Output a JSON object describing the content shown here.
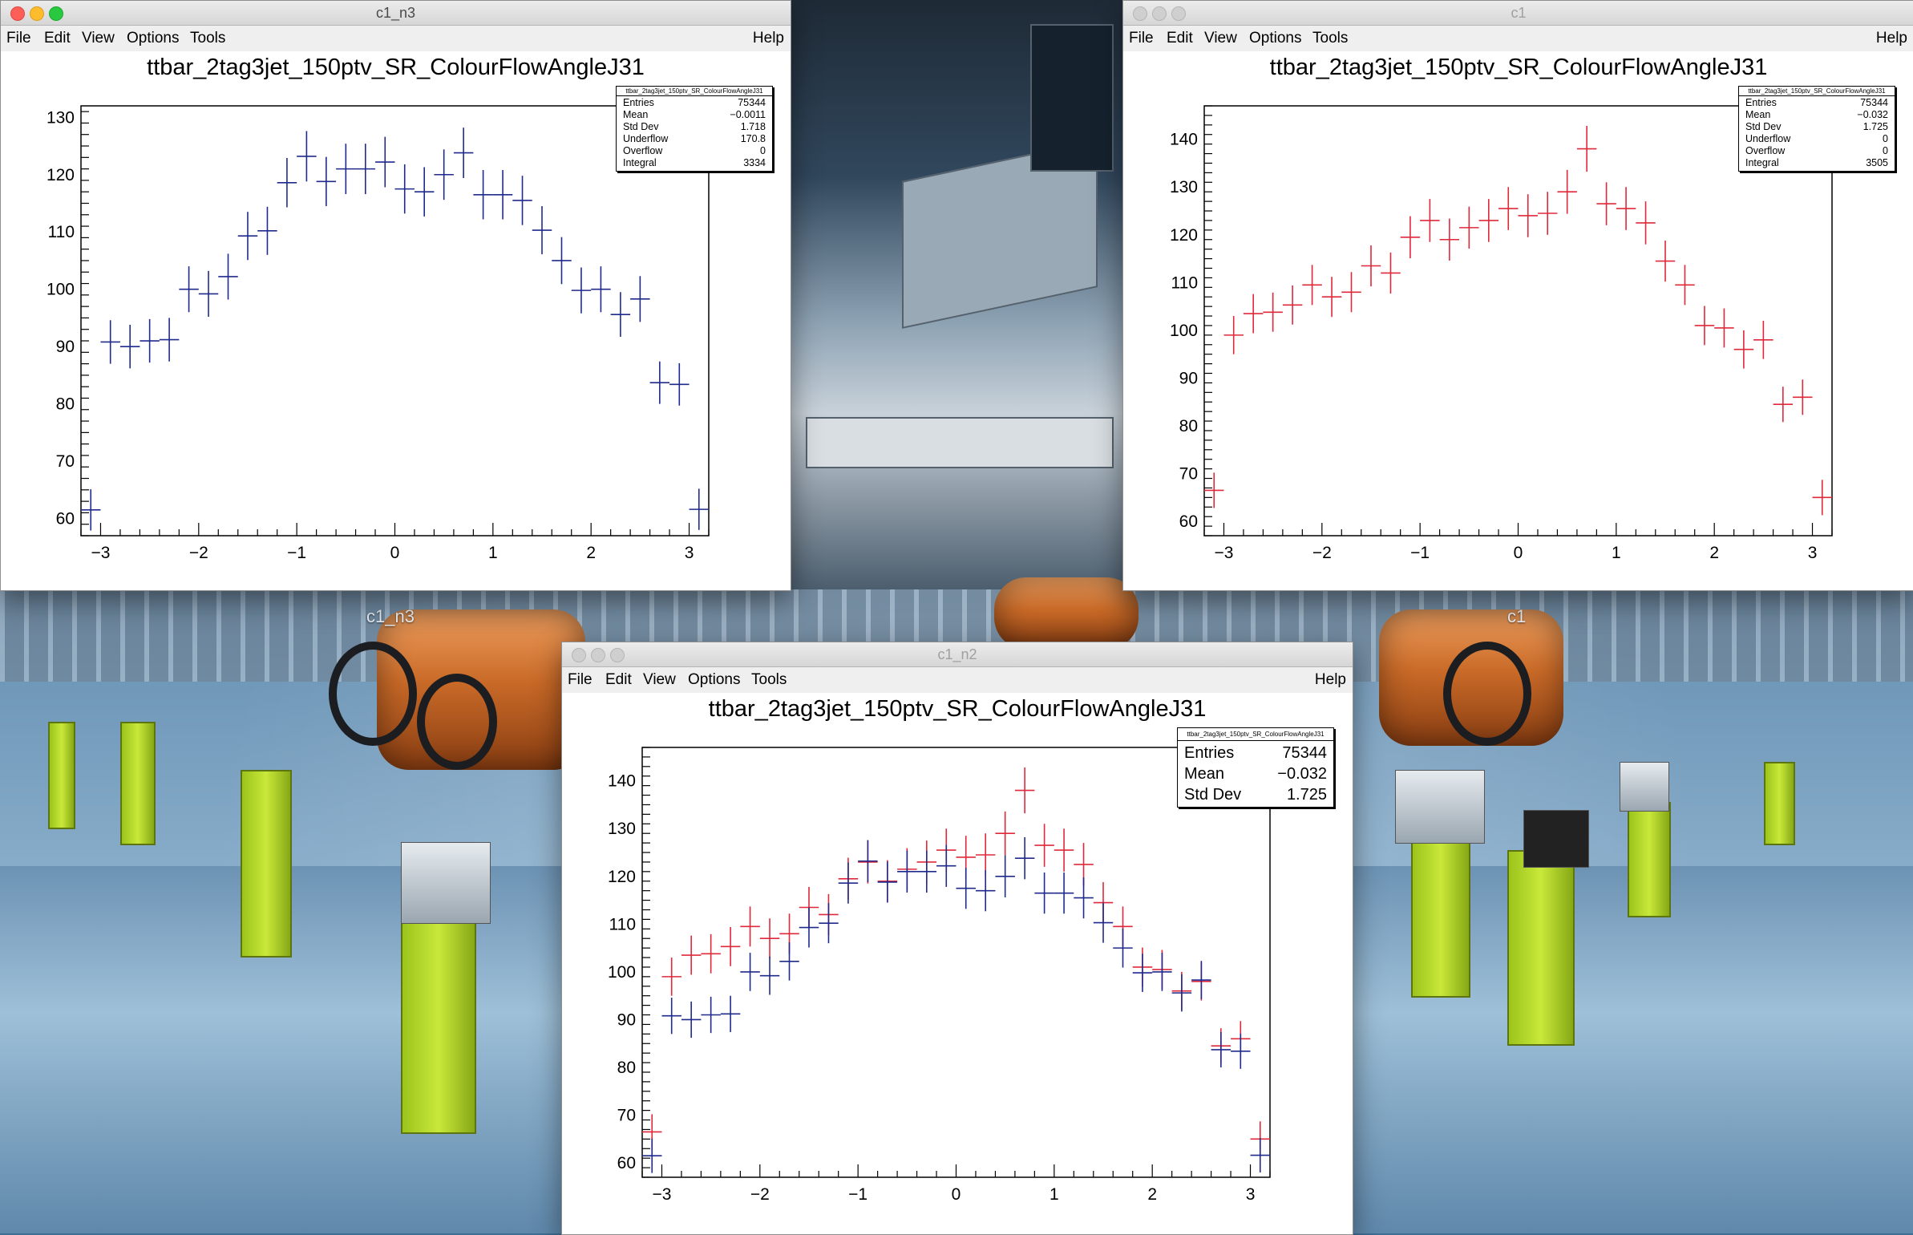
{
  "desktop": {
    "labels": [
      "c1_n3",
      "c1"
    ]
  },
  "menu": [
    "File",
    "Edit",
    "View",
    "Options",
    "Tools"
  ],
  "help": "Help",
  "x_ticks": [
    "−3",
    "−2",
    "−1",
    "0",
    "1",
    "2",
    "3"
  ],
  "windows": [
    {
      "id": "c1_n3",
      "title": "c1_n3",
      "state": "active",
      "hist_title": "ttbar_2tag3jet_150ptv_SR_ColourFlowAngleJ31",
      "stats": {
        "name": "ttbar_2tag3jet_150ptv_SR_ColourFlowAngleJ31",
        "rows": [
          {
            "label": "Entries",
            "value": "75344"
          },
          {
            "label": "Mean",
            "value": "−0.0011"
          },
          {
            "label": "Std Dev",
            "value": "1.718"
          },
          {
            "label": "Underflow",
            "value": "170.8"
          },
          {
            "label": "Overflow",
            "value": "0"
          },
          {
            "label": "Integral",
            "value": "3334"
          }
        ]
      },
      "y_ticks": [
        "60",
        "70",
        "80",
        "90",
        "100",
        "110",
        "120",
        "130"
      ]
    },
    {
      "id": "c1",
      "title": "c1",
      "state": "inactive",
      "hist_title": "ttbar_2tag3jet_150ptv_SR_ColourFlowAngleJ31",
      "stats": {
        "name": "ttbar_2tag3jet_150ptv_SR_ColourFlowAngleJ31",
        "rows": [
          {
            "label": "Entries",
            "value": "75344"
          },
          {
            "label": "Mean",
            "value": "−0.032"
          },
          {
            "label": "Std Dev",
            "value": "1.725"
          },
          {
            "label": "Underflow",
            "value": "0"
          },
          {
            "label": "Overflow",
            "value": "0"
          },
          {
            "label": "Integral",
            "value": "3505"
          }
        ]
      },
      "y_ticks": [
        "60",
        "70",
        "80",
        "90",
        "100",
        "110",
        "120",
        "130",
        "140"
      ]
    },
    {
      "id": "c1_n2",
      "title": "c1_n2",
      "state": "inactive",
      "hist_title": "ttbar_2tag3jet_150ptv_SR_ColourFlowAngleJ31",
      "stats": {
        "name": "ttbar_2tag3jet_150ptv_SR_ColourFlowAngleJ31",
        "rows": [
          {
            "label": "Entries",
            "value": "75344"
          },
          {
            "label": "Mean",
            "value": "−0.032"
          },
          {
            "label": "Std Dev",
            "value": "1.725"
          }
        ]
      },
      "y_ticks": [
        "60",
        "70",
        "80",
        "90",
        "100",
        "110",
        "120",
        "130",
        "140"
      ]
    }
  ],
  "chart_data": [
    {
      "type": "scatter",
      "title": "ttbar_2tag3jet_150ptv_SR_ColourFlowAngleJ31",
      "xlim": [
        -3.2,
        3.2
      ],
      "ylim": [
        57,
        132
      ],
      "bin_width": 0.2,
      "x": [
        -3.1,
        -2.9,
        -2.7,
        -2.5,
        -2.3,
        -2.1,
        -1.9,
        -1.7,
        -1.5,
        -1.3,
        -1.1,
        -0.9,
        -0.7,
        -0.5,
        -0.3,
        -0.1,
        0.1,
        0.3,
        0.5,
        0.7,
        0.9,
        1.1,
        1.3,
        1.5,
        1.7,
        1.9,
        2.1,
        2.3,
        2.5,
        2.7,
        2.9,
        3.1
      ],
      "series": [
        {
          "color": "#1f2a8c",
          "values": [
            61.5,
            90.8,
            90,
            91,
            91.2,
            100,
            99.2,
            102.2,
            109.3,
            110.2,
            118.6,
            123.2,
            118.8,
            121,
            121,
            122.2,
            117.5,
            117,
            120,
            123.8,
            116.5,
            116.5,
            115.5,
            110.3,
            105,
            99.8,
            100,
            95.6,
            98.3,
            83.7,
            83.4,
            61.6
          ],
          "errors": [
            3.6,
            3.8,
            3.8,
            3.8,
            3.8,
            4,
            4,
            4,
            4.2,
            4.2,
            4.3,
            4.4,
            4.3,
            4.4,
            4.4,
            4.4,
            4.3,
            4.3,
            4.4,
            4.4,
            4.3,
            4.3,
            4.3,
            4.2,
            4.1,
            4,
            4,
            3.9,
            4,
            3.7,
            3.7,
            3.6
          ]
        }
      ]
    },
    {
      "type": "scatter",
      "title": "ttbar_2tag3jet_150ptv_SR_ColourFlowAngleJ31",
      "xlim": [
        -3.2,
        3.2
      ],
      "ylim": [
        57,
        147
      ],
      "bin_width": 0.2,
      "x": [
        -3.1,
        -2.9,
        -2.7,
        -2.5,
        -2.3,
        -2.1,
        -1.9,
        -1.7,
        -1.5,
        -1.3,
        -1.1,
        -0.9,
        -0.7,
        -0.5,
        -0.3,
        -0.1,
        0.1,
        0.3,
        0.5,
        0.7,
        0.9,
        1.1,
        1.3,
        1.5,
        1.7,
        1.9,
        2.1,
        2.3,
        2.5,
        2.7,
        2.9,
        3.1
      ],
      "series": [
        {
          "color": "#e0283a",
          "values": [
            66.5,
            99,
            103.5,
            103.8,
            105.3,
            109.5,
            107,
            108,
            113.5,
            112,
            119.5,
            123,
            119,
            121.5,
            123,
            125.5,
            124,
            124.5,
            129,
            138,
            126.5,
            125.5,
            122.5,
            114.5,
            109.5,
            101,
            100.5,
            96,
            98,
            84.5,
            86,
            65
          ],
          "errors": [
            3.7,
            4,
            4.1,
            4.1,
            4.1,
            4.2,
            4.2,
            4.2,
            4.3,
            4.3,
            4.4,
            4.5,
            4.4,
            4.4,
            4.5,
            4.5,
            4.5,
            4.5,
            4.6,
            4.8,
            4.5,
            4.5,
            4.5,
            4.3,
            4.2,
            4.1,
            4.1,
            4,
            4,
            3.7,
            3.7,
            3.7
          ]
        }
      ]
    },
    {
      "type": "scatter",
      "title": "ttbar_2tag3jet_150ptv_SR_ColourFlowAngleJ31",
      "xlim": [
        -3.2,
        3.2
      ],
      "ylim": [
        57,
        147
      ],
      "bin_width": 0.2,
      "x": [
        -3.1,
        -2.9,
        -2.7,
        -2.5,
        -2.3,
        -2.1,
        -1.9,
        -1.7,
        -1.5,
        -1.3,
        -1.1,
        -0.9,
        -0.7,
        -0.5,
        -0.3,
        -0.1,
        0.1,
        0.3,
        0.5,
        0.7,
        0.9,
        1.1,
        1.3,
        1.5,
        1.7,
        1.9,
        2.1,
        2.3,
        2.5,
        2.7,
        2.9,
        3.1
      ],
      "series": [
        {
          "color": "#e0283a",
          "values": [
            66.5,
            99,
            103.5,
            103.8,
            105.3,
            109.5,
            107,
            108,
            113.5,
            112,
            119.5,
            123,
            119,
            121.5,
            123,
            125.5,
            124,
            124.5,
            129,
            138,
            126.5,
            125.5,
            122.5,
            114.5,
            109.5,
            101,
            100.5,
            96,
            98,
            84.5,
            86,
            65
          ],
          "errors": [
            3.7,
            4,
            4.1,
            4.1,
            4.1,
            4.2,
            4.2,
            4.2,
            4.3,
            4.3,
            4.4,
            4.5,
            4.4,
            4.4,
            4.5,
            4.5,
            4.5,
            4.5,
            4.6,
            4.8,
            4.5,
            4.5,
            4.5,
            4.3,
            4.2,
            4.1,
            4.1,
            4,
            4,
            3.7,
            3.7,
            3.7
          ]
        },
        {
          "color": "#1f2a8c",
          "values": [
            61.5,
            90.8,
            90,
            91,
            91.2,
            100,
            99.2,
            102.2,
            109.3,
            110.2,
            118.6,
            123.2,
            118.8,
            121,
            121,
            122.2,
            117.5,
            117,
            120,
            123.8,
            116.5,
            116.5,
            115.5,
            110.3,
            105,
            99.8,
            100,
            95.6,
            98.3,
            83.7,
            83.4,
            61.6
          ],
          "errors": [
            3.6,
            3.8,
            3.8,
            3.8,
            3.8,
            4,
            4,
            4,
            4.2,
            4.2,
            4.3,
            4.4,
            4.3,
            4.4,
            4.4,
            4.4,
            4.3,
            4.3,
            4.4,
            4.4,
            4.3,
            4.3,
            4.3,
            4.2,
            4.1,
            4,
            4,
            3.9,
            4,
            3.7,
            3.7,
            3.6
          ]
        }
      ]
    }
  ]
}
